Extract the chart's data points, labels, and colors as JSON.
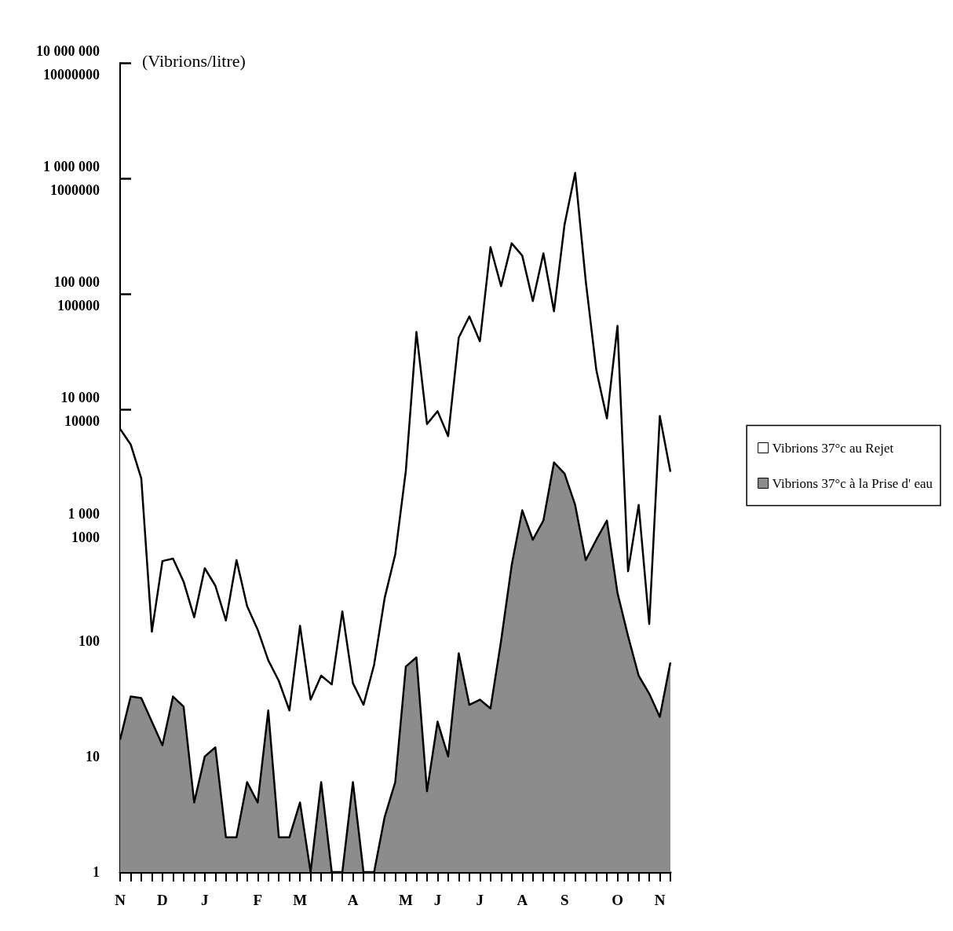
{
  "chart_data": {
    "type": "area",
    "ylabel": "(Vibrions/litre)",
    "categories": [
      "N",
      null,
      null,
      null,
      "D",
      null,
      null,
      null,
      "J",
      null,
      null,
      null,
      null,
      "F",
      null,
      null,
      null,
      "M",
      null,
      null,
      null,
      null,
      "A",
      null,
      null,
      null,
      null,
      "M",
      null,
      null,
      "J",
      null,
      null,
      null,
      "J",
      null,
      null,
      null,
      "A",
      null,
      null,
      null,
      "S",
      null,
      null,
      null,
      null,
      "O",
      null,
      null,
      null,
      "N",
      null
    ],
    "series": [
      {
        "name": "Vibrions 37°c au Rejet",
        "color": "#ffffff",
        "values": [
          6800,
          5000,
          2550,
          120,
          490,
          515,
          325,
          160,
          425,
          300,
          150,
          500,
          200,
          125,
          68,
          45,
          25,
          135,
          31,
          50,
          42,
          180,
          43,
          28,
          62,
          235,
          560,
          2950,
          47000,
          7500,
          9700,
          5900,
          42000,
          64000,
          39000,
          255000,
          117000,
          275000,
          215000,
          87000,
          225000,
          71000,
          400000,
          1120000,
          130000,
          22000,
          8400,
          53000,
          400,
          1500,
          140,
          8800,
          2900
        ]
      },
      {
        "name": "Vibrions 37°c à la Prise d' eau",
        "color": "#8c8c8c",
        "values": [
          14,
          33,
          32,
          20,
          12.5,
          33,
          27,
          4,
          10,
          12,
          2,
          2,
          6,
          4,
          25,
          2,
          2,
          4,
          1,
          6,
          1,
          1,
          6,
          1,
          1,
          3,
          6,
          60,
          72,
          5,
          20,
          10,
          78,
          28,
          31,
          26,
          100,
          450,
          1350,
          750,
          1100,
          3500,
          2800,
          1500,
          500,
          750,
          1100,
          260,
          110,
          50,
          35,
          22,
          65
        ]
      }
    ],
    "ylim": [
      1,
      10000000
    ],
    "yticks": [
      1,
      10,
      100,
      {
        "value": 1000,
        "label": "1 000\n1000"
      },
      {
        "value": 10000,
        "label": "10 000\n10000"
      },
      {
        "value": 100000,
        "label": "100 000\n100000"
      },
      {
        "value": 1000000,
        "label": "1 000 000\n1000000"
      },
      {
        "value": 10000000,
        "label": "10 000 000\n10000000"
      }
    ],
    "log": true,
    "grid": false,
    "legend": "right",
    "marker": "none",
    "line_style": "solid"
  }
}
